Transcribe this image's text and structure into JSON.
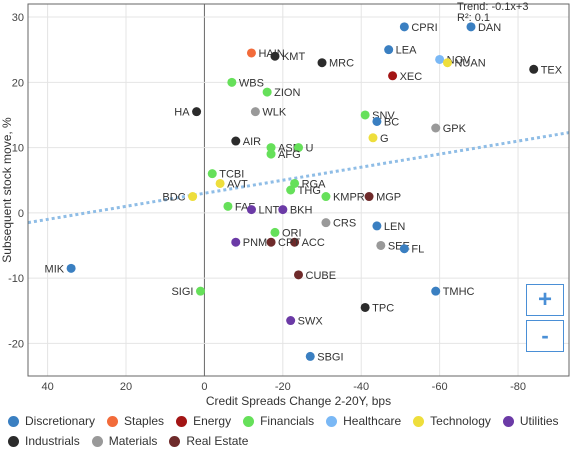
{
  "chart_data": {
    "type": "scatter",
    "xlabel": "Credit Spreads Change 2-20Y, bps",
    "ylabel": "Subsequent stock move, %",
    "xlim": [
      45,
      -93
    ],
    "ylim": [
      -25,
      32
    ],
    "x_ticks": [
      40,
      20,
      0,
      -20,
      -40,
      -60,
      -80
    ],
    "x_tick_labels": [
      "40",
      "20",
      "0",
      "-20",
      "-40",
      "-60",
      "-80"
    ],
    "y_ticks": [
      30,
      20,
      10,
      0,
      -10,
      -20
    ],
    "y_tick_labels": [
      "30",
      "20",
      "10",
      "0",
      "-10",
      "-20"
    ],
    "grid": "x and y",
    "trend": {
      "label": "Trend: -0.1x+3",
      "r2_label": "R²: 0.1",
      "slope": -0.1,
      "intercept": 3,
      "color": "#8fbde6"
    },
    "legend_position": "bottom",
    "sectors": [
      {
        "name": "Discretionary",
        "color": "#3a7fc1"
      },
      {
        "name": "Staples",
        "color": "#f26b3a"
      },
      {
        "name": "Energy",
        "color": "#a31515"
      },
      {
        "name": "Financials",
        "color": "#66e05a"
      },
      {
        "name": "Healthcare",
        "color": "#7ab8f5"
      },
      {
        "name": "Technology",
        "color": "#eede3c"
      },
      {
        "name": "Utilities",
        "color": "#6b3aa6"
      },
      {
        "name": "Industrials",
        "color": "#2b2b2b"
      },
      {
        "name": "Materials",
        "color": "#999999"
      },
      {
        "name": "Real Estate",
        "color": "#6e2a2a"
      }
    ],
    "points": [
      {
        "label": "CPRI",
        "x": -51,
        "y": 28.5,
        "sector": "Discretionary"
      },
      {
        "label": "DAN",
        "x": -68,
        "y": 28.5,
        "sector": "Discretionary"
      },
      {
        "label": "HAIN",
        "x": -12,
        "y": 24.5,
        "sector": "Staples"
      },
      {
        "label": "KMT",
        "x": -18,
        "y": 24,
        "sector": "Industrials"
      },
      {
        "label": "MRC",
        "x": -30,
        "y": 23,
        "sector": "Industrials"
      },
      {
        "label": "LEA",
        "x": -47,
        "y": 25,
        "sector": "Discretionary"
      },
      {
        "label": "NOV",
        "x": -60,
        "y": 23.5,
        "sector": "Healthcare"
      },
      {
        "label": "NUAN",
        "x": -62,
        "y": 23,
        "sector": "Technology"
      },
      {
        "label": "TEX",
        "x": -84,
        "y": 22,
        "sector": "Industrials"
      },
      {
        "label": "XEC",
        "x": -48,
        "y": 21,
        "sector": "Energy"
      },
      {
        "label": "WBS",
        "x": -7,
        "y": 20,
        "sector": "Financials"
      },
      {
        "label": "ZION",
        "x": -16,
        "y": 18.5,
        "sector": "Financials"
      },
      {
        "label": "HA",
        "x": 2,
        "y": 15.5,
        "sector": "Industrials"
      },
      {
        "label": "WLK",
        "x": -13,
        "y": 15.5,
        "sector": "Materials"
      },
      {
        "label": "SNV",
        "x": -41,
        "y": 15,
        "sector": "Financials"
      },
      {
        "label": "BC",
        "x": -44,
        "y": 14,
        "sector": "Discretionary"
      },
      {
        "label": "GPK",
        "x": -59,
        "y": 13,
        "sector": "Materials"
      },
      {
        "label": "G",
        "x": -43,
        "y": 11.5,
        "sector": "Technology"
      },
      {
        "label": "AIR",
        "x": -8,
        "y": 11,
        "sector": "Industrials"
      },
      {
        "label": "ASB",
        "x": -17,
        "y": 10,
        "sector": "Financials"
      },
      {
        "label": "U",
        "x": -24,
        "y": 10,
        "sector": "Financials"
      },
      {
        "label": "AFG",
        "x": -17,
        "y": 9,
        "sector": "Financials"
      },
      {
        "label": "TCBI",
        "x": -2,
        "y": 6,
        "sector": "Financials"
      },
      {
        "label": "AVT",
        "x": -4,
        "y": 4.5,
        "sector": "Technology"
      },
      {
        "label": "RGA",
        "x": -23,
        "y": 4.5,
        "sector": "Financials"
      },
      {
        "label": "THG",
        "x": -22,
        "y": 3.5,
        "sector": "Financials"
      },
      {
        "label": "KMPR",
        "x": -31,
        "y": 2.5,
        "sector": "Financials"
      },
      {
        "label": "MGP",
        "x": -42,
        "y": 2.5,
        "sector": "Real Estate"
      },
      {
        "label": "BDC",
        "x": 3,
        "y": 2.5,
        "sector": "Technology"
      },
      {
        "label": "FAF",
        "x": -6,
        "y": 1,
        "sector": "Financials"
      },
      {
        "label": "LNT",
        "x": -12,
        "y": 0.5,
        "sector": "Utilities"
      },
      {
        "label": "BKH",
        "x": -20,
        "y": 0.5,
        "sector": "Utilities"
      },
      {
        "label": "CRS",
        "x": -31,
        "y": -1.5,
        "sector": "Materials"
      },
      {
        "label": "LEN",
        "x": -44,
        "y": -2,
        "sector": "Discretionary"
      },
      {
        "label": "ORI",
        "x": -18,
        "y": -3,
        "sector": "Financials"
      },
      {
        "label": "ACC",
        "x": -23,
        "y": -4.5,
        "sector": "Real Estate"
      },
      {
        "label": "PNM",
        "x": -8,
        "y": -4.5,
        "sector": "Utilities"
      },
      {
        "label": "CPT",
        "x": -17,
        "y": -4.5,
        "sector": "Real Estate"
      },
      {
        "label": "SEE",
        "x": -45,
        "y": -5,
        "sector": "Materials"
      },
      {
        "label": "FL",
        "x": -51,
        "y": -5.5,
        "sector": "Discretionary"
      },
      {
        "label": "MIK",
        "x": 34,
        "y": -8.5,
        "sector": "Discretionary"
      },
      {
        "label": "CUBE",
        "x": -24,
        "y": -9.5,
        "sector": "Real Estate"
      },
      {
        "label": "SIGI",
        "x": 1,
        "y": -12,
        "sector": "Financials"
      },
      {
        "label": "TMHC",
        "x": -59,
        "y": -12,
        "sector": "Discretionary"
      },
      {
        "label": "TPC",
        "x": -41,
        "y": -14.5,
        "sector": "Industrials"
      },
      {
        "label": "SWX",
        "x": -22,
        "y": -16.5,
        "sector": "Utilities"
      },
      {
        "label": "SBGI",
        "x": -27,
        "y": -22,
        "sector": "Discretionary"
      }
    ]
  },
  "controls": {
    "zoom_in_label": "+",
    "zoom_out_label": "-"
  }
}
